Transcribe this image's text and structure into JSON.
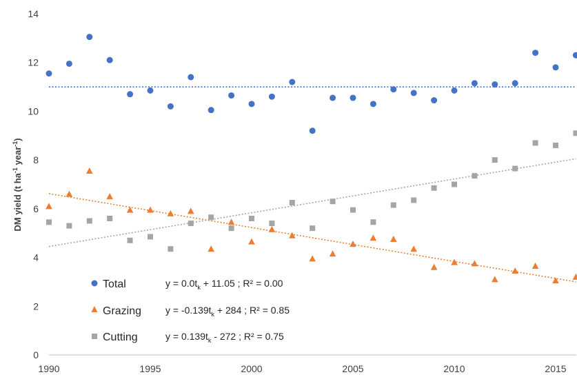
{
  "chart_data": {
    "type": "scatter",
    "ylabel": "DM yield (t ha",
    "ylabel_sup1": "-1",
    "ylabel_mid": " year",
    "ylabel_sup2": "-1",
    "ylabel_end": ")",
    "xlim": [
      1990,
      2016
    ],
    "ylim": [
      0,
      14
    ],
    "x_ticks": [
      "1990",
      "1995",
      "2000",
      "2005",
      "2010",
      "2015"
    ],
    "y_ticks": [
      "0",
      "2",
      "4",
      "6",
      "8",
      "10",
      "12",
      "14"
    ],
    "grid": false,
    "legend_position": "bottom-left",
    "x": [
      1990,
      1991,
      1992,
      1993,
      1994,
      1995,
      1996,
      1997,
      1998,
      1999,
      2000,
      2001,
      2002,
      2003,
      2004,
      2005,
      2006,
      2007,
      2008,
      2009,
      2010,
      2011,
      2012,
      2013,
      2014,
      2015,
      2016
    ],
    "series": [
      {
        "name": "Total",
        "marker": "circle",
        "color": "#4472C4",
        "values": [
          11.55,
          11.95,
          13.05,
          12.1,
          10.7,
          10.85,
          10.2,
          11.4,
          10.05,
          10.65,
          10.3,
          10.6,
          11.2,
          9.2,
          10.55,
          10.55,
          10.3,
          10.9,
          10.75,
          10.45,
          10.85,
          11.15,
          11.1,
          11.15,
          12.4,
          11.8,
          12.3
        ],
        "equation": "y = 0.0t",
        "equation_sub": "k",
        "equation_rest": " + 11.05 ; R² = 0.00",
        "trend": [
          11.0,
          11.0
        ]
      },
      {
        "name": "Grazing",
        "marker": "triangle",
        "color": "#ED7D31",
        "values": [
          6.1,
          6.6,
          7.55,
          6.5,
          5.95,
          5.95,
          5.8,
          5.9,
          4.35,
          5.45,
          4.65,
          5.15,
          4.9,
          3.95,
          4.15,
          4.55,
          4.8,
          4.75,
          4.35,
          3.6,
          3.8,
          3.75,
          3.1,
          3.45,
          3.65,
          3.05,
          3.2
        ],
        "equation": "y = -0.139t",
        "equation_sub": "k",
        "equation_rest": " + 284 ; R² = 0.85",
        "trend": [
          6.62,
          3.0
        ]
      },
      {
        "name": "Cutting",
        "marker": "square",
        "color": "#A5A5A5",
        "values": [
          5.45,
          5.3,
          5.5,
          5.6,
          4.7,
          4.85,
          4.35,
          5.4,
          5.65,
          5.2,
          5.6,
          5.4,
          6.25,
          5.2,
          6.3,
          5.95,
          5.45,
          6.15,
          6.35,
          6.85,
          7.0,
          7.35,
          8.0,
          7.65,
          8.7,
          8.6,
          9.1
        ],
        "equation": "y = 0.139t",
        "equation_sub": "k",
        "equation_rest": " - 272 ; R² = 0.75",
        "trend": [
          4.45,
          8.05
        ]
      }
    ]
  }
}
